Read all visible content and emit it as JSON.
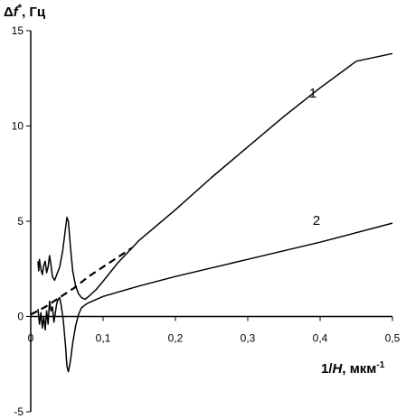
{
  "chart_data": {
    "type": "line",
    "ylabel": {
      "prefix": "Δ",
      "var": "f",
      "sup": "*",
      "suffix": ", Гц"
    },
    "xlabel": {
      "prefix": "1/",
      "var": "H",
      "suffix": ", мкм",
      "sup": "-1"
    },
    "xlim": [
      0,
      0.5
    ],
    "ylim": [
      -5,
      15
    ],
    "xticks": [
      0,
      0.1,
      0.2,
      0.3,
      0.4,
      0.5
    ],
    "xtick_labels": [
      "0",
      "0,1",
      "0,2",
      "0,3",
      "0,4",
      "0,5"
    ],
    "yticks": [
      -5,
      0,
      5,
      10,
      15
    ],
    "ytick_labels": [
      "-5",
      "0",
      "5",
      "10",
      "15"
    ],
    "grid": false,
    "legend": "none",
    "series": [
      {
        "name": "1",
        "style": "solid",
        "points": [
          [
            0.01,
            2.9
          ],
          [
            0.011,
            2.4
          ],
          [
            0.012,
            3.0
          ],
          [
            0.014,
            2.5
          ],
          [
            0.016,
            2.2
          ],
          [
            0.018,
            2.7
          ],
          [
            0.02,
            2.9
          ],
          [
            0.022,
            2.3
          ],
          [
            0.024,
            2.6
          ],
          [
            0.026,
            3.2
          ],
          [
            0.028,
            2.7
          ],
          [
            0.03,
            2.1
          ],
          [
            0.033,
            1.9
          ],
          [
            0.036,
            2.2
          ],
          [
            0.04,
            2.6
          ],
          [
            0.044,
            3.4
          ],
          [
            0.048,
            4.6
          ],
          [
            0.05,
            5.2
          ],
          [
            0.052,
            5.0
          ],
          [
            0.055,
            3.6
          ],
          [
            0.058,
            2.4
          ],
          [
            0.062,
            1.6
          ],
          [
            0.066,
            1.2
          ],
          [
            0.07,
            1.0
          ],
          [
            0.075,
            0.9
          ],
          [
            0.08,
            1.05
          ],
          [
            0.09,
            1.4
          ],
          [
            0.1,
            1.85
          ],
          [
            0.12,
            2.8
          ],
          [
            0.15,
            4.0
          ],
          [
            0.2,
            5.6
          ],
          [
            0.25,
            7.3
          ],
          [
            0.3,
            8.9
          ],
          [
            0.35,
            10.5
          ],
          [
            0.4,
            12.0
          ],
          [
            0.45,
            13.4
          ],
          [
            0.5,
            13.8
          ]
        ]
      },
      {
        "name": "2",
        "style": "solid",
        "points": [
          [
            0.01,
            0.4
          ],
          [
            0.012,
            -0.4
          ],
          [
            0.014,
            0.2
          ],
          [
            0.016,
            -0.6
          ],
          [
            0.018,
            0.0
          ],
          [
            0.02,
            -0.7
          ],
          [
            0.022,
            0.3
          ],
          [
            0.024,
            -0.4
          ],
          [
            0.026,
            0.8
          ],
          [
            0.028,
            0.3
          ],
          [
            0.03,
            0.5
          ],
          [
            0.032,
            -0.3
          ],
          [
            0.034,
            0.2
          ],
          [
            0.036,
            0.7
          ],
          [
            0.038,
            0.9
          ],
          [
            0.04,
            1.0
          ],
          [
            0.042,
            0.6
          ],
          [
            0.045,
            -0.2
          ],
          [
            0.048,
            -1.5
          ],
          [
            0.05,
            -2.6
          ],
          [
            0.052,
            -2.9
          ],
          [
            0.055,
            -2.3
          ],
          [
            0.058,
            -1.4
          ],
          [
            0.062,
            -0.5
          ],
          [
            0.066,
            0.1
          ],
          [
            0.07,
            0.45
          ],
          [
            0.075,
            0.6
          ],
          [
            0.08,
            0.72
          ],
          [
            0.1,
            1.05
          ],
          [
            0.15,
            1.6
          ],
          [
            0.2,
            2.1
          ],
          [
            0.25,
            2.55
          ],
          [
            0.3,
            3.0
          ],
          [
            0.35,
            3.45
          ],
          [
            0.4,
            3.9
          ],
          [
            0.45,
            4.4
          ],
          [
            0.5,
            4.9
          ]
        ]
      },
      {
        "name": "",
        "style": "dashed",
        "points": [
          [
            0.0,
            0.1
          ],
          [
            0.02,
            0.5
          ],
          [
            0.04,
            1.0
          ],
          [
            0.06,
            1.5
          ],
          [
            0.08,
            2.1
          ],
          [
            0.1,
            2.6
          ],
          [
            0.12,
            3.1
          ],
          [
            0.14,
            3.6
          ]
        ]
      }
    ],
    "annotations": [
      {
        "text": "1",
        "x": 0.39,
        "y": 11.5
      },
      {
        "text": "2",
        "x": 0.395,
        "y": 4.8
      }
    ]
  }
}
